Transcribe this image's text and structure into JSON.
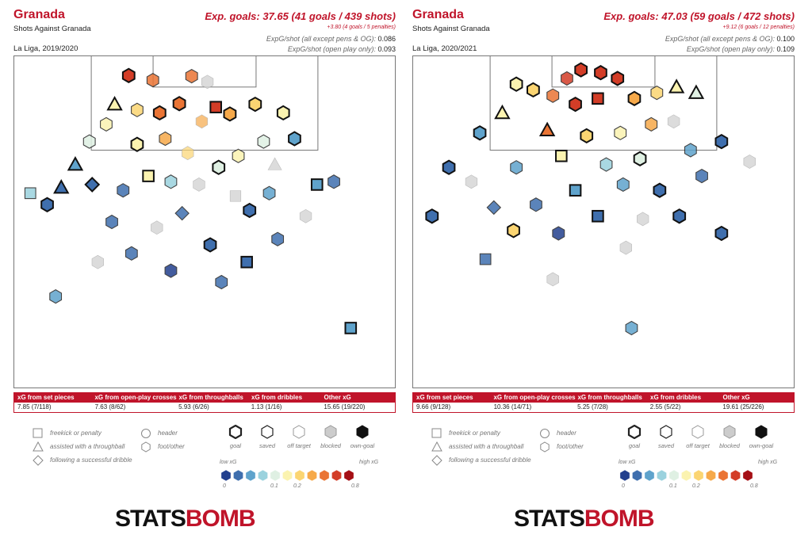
{
  "panels": [
    {
      "team": "Granada",
      "subtitle": "Shots Against Granada",
      "season": "La Liga, 2019/2020",
      "xg_title": "Exp. goals: 37.65 (41 goals / 439 shots)",
      "xg_pens": "+3.80 (4 goals / 5 penalties)",
      "stat1_label": "ExpG/shot (all except pens & OG):",
      "stat1_value": "0.086",
      "stat2_label": "ExpG/shot (open play only):",
      "stat2_value": "0.093",
      "summary_headers": [
        "xG from set pieces",
        "xG from open-play crosses",
        "xG from throughballs",
        "xG from dribbles",
        "Other xG"
      ],
      "summary_values": [
        "7.85 (7/118)",
        "7.63 (8/62)",
        "5.93 (6/26)",
        "1.13 (1/16)",
        "15.65 (19/220)"
      ]
    },
    {
      "team": "Granada",
      "subtitle": "Shots Against Granada",
      "season": "La Liga, 2020/2021",
      "xg_title": "Exp. goals: 47.03 (59 goals / 472 shots)",
      "xg_pens": "+9.12 (6 goals / 12 penalties)",
      "stat1_label": "ExpG/shot (all except pens & OG):",
      "stat1_value": "0.100",
      "stat2_label": "ExpG/shot (open play only):",
      "stat2_value": "0.109",
      "summary_headers": [
        "xG from set pieces",
        "xG from open-play crosses",
        "xG from throughballs",
        "xG from dribbles",
        "Other xG"
      ],
      "summary_values": [
        "9.66 (9/128)",
        "10.36 (14/71)",
        "5.25 (7/28)",
        "2.55 (5/22)",
        "19.61 (25/226)"
      ]
    }
  ],
  "legend": {
    "shapes": [
      "freekick or penalty",
      "assisted with a throughball",
      "following a successful dribble"
    ],
    "shapes_right": [
      "header",
      "foot/other"
    ],
    "outcomes": [
      "goal",
      "saved",
      "off target",
      "blocked",
      "own-goal"
    ],
    "scale_low": "low xG",
    "scale_high": "high xG",
    "scale_ticks": [
      "0",
      "0.1",
      "0.2",
      "0.8"
    ],
    "scale_colors": [
      "#23408e",
      "#3f6fae",
      "#5fa3cc",
      "#9bd2de",
      "#dff0e3",
      "#fbf3b0",
      "#fbd572",
      "#f6a94a",
      "#ea7434",
      "#d33d27",
      "#a50f15"
    ]
  },
  "logo": {
    "part1": "STATS",
    "part2": "BOMB"
  },
  "chart_data": [
    {
      "type": "scatter",
      "title": "Shots Against Granada",
      "description_units": "x = metres across pitch width from left touchline (0-68), y = metres from goal line (0-~58), xg = expected goals",
      "xlim": [
        0,
        68
      ],
      "ylim": [
        0,
        58
      ],
      "points": [
        {
          "x": 20.5,
          "y": 3.5,
          "xg": 0.55,
          "shape": "hex",
          "outcome": "goal"
        },
        {
          "x": 24.8,
          "y": 4.3,
          "xg": 0.35,
          "shape": "hex",
          "outcome": "saved"
        },
        {
          "x": 31.7,
          "y": 3.6,
          "xg": 0.32,
          "shape": "hex",
          "outcome": "saved"
        },
        {
          "x": 34.5,
          "y": 4.6,
          "xg": 0.28,
          "shape": "hex",
          "outcome": "blocked"
        },
        {
          "x": 36.0,
          "y": 9.0,
          "xg": 0.62,
          "shape": "square",
          "outcome": "goal"
        },
        {
          "x": 29.5,
          "y": 8.4,
          "xg": 0.45,
          "shape": "hex",
          "outcome": "goal"
        },
        {
          "x": 26.0,
          "y": 10.0,
          "xg": 0.3,
          "shape": "hex",
          "outcome": "goal"
        },
        {
          "x": 22.0,
          "y": 9.5,
          "xg": 0.18,
          "shape": "hex",
          "outcome": "saved"
        },
        {
          "x": 33.5,
          "y": 11.5,
          "xg": 0.2,
          "shape": "hex",
          "outcome": "off target"
        },
        {
          "x": 38.5,
          "y": 10.2,
          "xg": 0.22,
          "shape": "hex",
          "outcome": "goal"
        },
        {
          "x": 43.0,
          "y": 8.5,
          "xg": 0.18,
          "shape": "hex",
          "outcome": "goal"
        },
        {
          "x": 18.0,
          "y": 8.5,
          "xg": 0.12,
          "shape": "triangle",
          "outcome": "goal"
        },
        {
          "x": 16.5,
          "y": 12.0,
          "xg": 0.13,
          "shape": "hex",
          "outcome": "saved"
        },
        {
          "x": 48.0,
          "y": 10.0,
          "xg": 0.1,
          "shape": "hex",
          "outcome": "goal"
        },
        {
          "x": 50.0,
          "y": 14.5,
          "xg": 0.05,
          "shape": "hex",
          "outcome": "goal"
        },
        {
          "x": 13.5,
          "y": 15.0,
          "xg": 0.09,
          "shape": "hex",
          "outcome": "saved"
        },
        {
          "x": 11.0,
          "y": 19.0,
          "xg": 0.04,
          "shape": "triangle",
          "outcome": "goal"
        },
        {
          "x": 22.0,
          "y": 15.5,
          "xg": 0.11,
          "shape": "hex",
          "outcome": "goal"
        },
        {
          "x": 27.0,
          "y": 14.5,
          "xg": 0.25,
          "shape": "hex",
          "outcome": "saved"
        },
        {
          "x": 31.0,
          "y": 17.0,
          "xg": 0.15,
          "shape": "hex",
          "outcome": "off target"
        },
        {
          "x": 40.0,
          "y": 17.5,
          "xg": 0.12,
          "shape": "hex",
          "outcome": "saved"
        },
        {
          "x": 44.5,
          "y": 15.0,
          "xg": 0.09,
          "shape": "hex",
          "outcome": "saved"
        },
        {
          "x": 46.5,
          "y": 19.0,
          "xg": 0.2,
          "shape": "triangle",
          "outcome": "blocked"
        },
        {
          "x": 36.5,
          "y": 19.5,
          "xg": 0.09,
          "shape": "hex",
          "outcome": "goal"
        },
        {
          "x": 24.0,
          "y": 21.0,
          "xg": 0.1,
          "shape": "square",
          "outcome": "goal"
        },
        {
          "x": 28.0,
          "y": 22.0,
          "xg": 0.06,
          "shape": "hex",
          "outcome": "saved"
        },
        {
          "x": 33.0,
          "y": 22.5,
          "xg": 0.05,
          "shape": "hex",
          "outcome": "blocked"
        },
        {
          "x": 19.5,
          "y": 23.5,
          "xg": 0.03,
          "shape": "hex",
          "outcome": "saved"
        },
        {
          "x": 14.0,
          "y": 22.5,
          "xg": 0.02,
          "shape": "diamond",
          "outcome": "goal"
        },
        {
          "x": 8.5,
          "y": 23.0,
          "xg": 0.03,
          "shape": "triangle",
          "outcome": "goal"
        },
        {
          "x": 39.5,
          "y": 24.5,
          "xg": 0.04,
          "shape": "square",
          "outcome": "blocked"
        },
        {
          "x": 45.5,
          "y": 24.0,
          "xg": 0.05,
          "shape": "hex",
          "outcome": "saved"
        },
        {
          "x": 54.0,
          "y": 22.5,
          "xg": 0.04,
          "shape": "square",
          "outcome": "goal"
        },
        {
          "x": 57.0,
          "y": 22.0,
          "xg": 0.03,
          "shape": "hex",
          "outcome": "saved"
        },
        {
          "x": 42.0,
          "y": 27.0,
          "xg": 0.03,
          "shape": "hex",
          "outcome": "goal"
        },
        {
          "x": 30.0,
          "y": 27.5,
          "xg": 0.02,
          "shape": "diamond",
          "outcome": "saved"
        },
        {
          "x": 25.5,
          "y": 30.0,
          "xg": 0.02,
          "shape": "hex",
          "outcome": "blocked"
        },
        {
          "x": 17.5,
          "y": 29.0,
          "xg": 0.02,
          "shape": "hex",
          "outcome": "saved"
        },
        {
          "x": 6.0,
          "y": 26.0,
          "xg": 0.03,
          "shape": "hex",
          "outcome": "goal"
        },
        {
          "x": 3.0,
          "y": 24.0,
          "xg": 0.06,
          "shape": "square",
          "outcome": "saved"
        },
        {
          "x": 47.0,
          "y": 32.0,
          "xg": 0.02,
          "shape": "hex",
          "outcome": "saved"
        },
        {
          "x": 52.0,
          "y": 28.0,
          "xg": 0.02,
          "shape": "hex",
          "outcome": "blocked"
        },
        {
          "x": 35.0,
          "y": 33.0,
          "xg": 0.02,
          "shape": "hex",
          "outcome": "goal"
        },
        {
          "x": 21.0,
          "y": 34.5,
          "xg": 0.02,
          "shape": "hex",
          "outcome": "saved"
        },
        {
          "x": 41.5,
          "y": 36.0,
          "xg": 0.02,
          "shape": "square",
          "outcome": "goal"
        },
        {
          "x": 28.0,
          "y": 37.5,
          "xg": 0.01,
          "shape": "hex",
          "outcome": "saved"
        },
        {
          "x": 15.0,
          "y": 36.0,
          "xg": 0.02,
          "shape": "hex",
          "outcome": "blocked"
        },
        {
          "x": 7.5,
          "y": 42.0,
          "xg": 0.05,
          "shape": "hex",
          "outcome": "saved"
        },
        {
          "x": 60.0,
          "y": 47.5,
          "xg": 0.05,
          "shape": "square",
          "outcome": "goal"
        },
        {
          "x": 37.0,
          "y": 39.5,
          "xg": 0.02,
          "shape": "hex",
          "outcome": "saved"
        }
      ]
    },
    {
      "type": "scatter",
      "title": "Shots Against Granada",
      "description_units": "x = metres across pitch width from left touchline (0-68), y = metres from goal line (0-~58), xg = expected goals",
      "xlim": [
        0,
        68
      ],
      "ylim": [
        0,
        58
      ],
      "points": [
        {
          "x": 30.0,
          "y": 2.5,
          "xg": 0.65,
          "shape": "hex",
          "outcome": "goal"
        },
        {
          "x": 33.5,
          "y": 3.0,
          "xg": 0.7,
          "shape": "hex",
          "outcome": "goal"
        },
        {
          "x": 27.5,
          "y": 4.0,
          "xg": 0.6,
          "shape": "hex",
          "outcome": "saved"
        },
        {
          "x": 36.5,
          "y": 4.0,
          "xg": 0.5,
          "shape": "hex",
          "outcome": "goal"
        },
        {
          "x": 33.0,
          "y": 7.5,
          "xg": 0.72,
          "shape": "square",
          "outcome": "goal"
        },
        {
          "x": 29.0,
          "y": 8.5,
          "xg": 0.55,
          "shape": "hex",
          "outcome": "goal"
        },
        {
          "x": 25.0,
          "y": 7.0,
          "xg": 0.3,
          "shape": "hex",
          "outcome": "saved"
        },
        {
          "x": 21.5,
          "y": 6.0,
          "xg": 0.18,
          "shape": "hex",
          "outcome": "goal"
        },
        {
          "x": 18.5,
          "y": 5.0,
          "xg": 0.14,
          "shape": "hex",
          "outcome": "goal"
        },
        {
          "x": 39.5,
          "y": 7.5,
          "xg": 0.28,
          "shape": "hex",
          "outcome": "goal"
        },
        {
          "x": 43.5,
          "y": 6.5,
          "xg": 0.16,
          "shape": "hex",
          "outcome": "saved"
        },
        {
          "x": 47.0,
          "y": 5.5,
          "xg": 0.12,
          "shape": "triangle",
          "outcome": "goal"
        },
        {
          "x": 50.5,
          "y": 6.5,
          "xg": 0.08,
          "shape": "triangle",
          "outcome": "goal"
        },
        {
          "x": 16.0,
          "y": 10.0,
          "xg": 0.1,
          "shape": "triangle",
          "outcome": "goal"
        },
        {
          "x": 24.0,
          "y": 13.0,
          "xg": 0.35,
          "shape": "triangle",
          "outcome": "goal"
        },
        {
          "x": 31.0,
          "y": 14.0,
          "xg": 0.18,
          "shape": "hex",
          "outcome": "goal"
        },
        {
          "x": 37.0,
          "y": 13.5,
          "xg": 0.12,
          "shape": "hex",
          "outcome": "saved"
        },
        {
          "x": 42.5,
          "y": 12.0,
          "xg": 0.2,
          "shape": "hex",
          "outcome": "saved"
        },
        {
          "x": 46.5,
          "y": 11.5,
          "xg": 0.09,
          "shape": "hex",
          "outcome": "blocked"
        },
        {
          "x": 12.0,
          "y": 13.5,
          "xg": 0.05,
          "shape": "hex",
          "outcome": "goal"
        },
        {
          "x": 26.5,
          "y": 17.5,
          "xg": 0.1,
          "shape": "square",
          "outcome": "goal"
        },
        {
          "x": 34.5,
          "y": 19.0,
          "xg": 0.07,
          "shape": "hex",
          "outcome": "saved"
        },
        {
          "x": 40.5,
          "y": 18.0,
          "xg": 0.09,
          "shape": "hex",
          "outcome": "goal"
        },
        {
          "x": 49.5,
          "y": 16.5,
          "xg": 0.04,
          "shape": "hex",
          "outcome": "saved"
        },
        {
          "x": 55.0,
          "y": 15.0,
          "xg": 0.03,
          "shape": "hex",
          "outcome": "goal"
        },
        {
          "x": 18.5,
          "y": 19.5,
          "xg": 0.04,
          "shape": "hex",
          "outcome": "saved"
        },
        {
          "x": 10.5,
          "y": 22.0,
          "xg": 0.03,
          "shape": "hex",
          "outcome": "blocked"
        },
        {
          "x": 6.5,
          "y": 19.5,
          "xg": 0.02,
          "shape": "hex",
          "outcome": "goal"
        },
        {
          "x": 29.0,
          "y": 23.5,
          "xg": 0.04,
          "shape": "square",
          "outcome": "goal"
        },
        {
          "x": 37.5,
          "y": 22.5,
          "xg": 0.05,
          "shape": "hex",
          "outcome": "saved"
        },
        {
          "x": 44.0,
          "y": 23.5,
          "xg": 0.03,
          "shape": "hex",
          "outcome": "goal"
        },
        {
          "x": 51.5,
          "y": 21.0,
          "xg": 0.02,
          "shape": "hex",
          "outcome": "saved"
        },
        {
          "x": 60.0,
          "y": 18.5,
          "xg": 0.02,
          "shape": "hex",
          "outcome": "blocked"
        },
        {
          "x": 22.0,
          "y": 26.0,
          "xg": 0.02,
          "shape": "hex",
          "outcome": "saved"
        },
        {
          "x": 14.5,
          "y": 26.5,
          "xg": 0.02,
          "shape": "diamond",
          "outcome": "saved"
        },
        {
          "x": 33.0,
          "y": 28.0,
          "xg": 0.02,
          "shape": "square",
          "outcome": "goal"
        },
        {
          "x": 41.0,
          "y": 28.5,
          "xg": 0.02,
          "shape": "hex",
          "outcome": "blocked"
        },
        {
          "x": 47.5,
          "y": 28.0,
          "xg": 0.02,
          "shape": "hex",
          "outcome": "goal"
        },
        {
          "x": 26.0,
          "y": 31.0,
          "xg": 0.01,
          "shape": "hex",
          "outcome": "saved"
        },
        {
          "x": 18.0,
          "y": 30.5,
          "xg": 0.18,
          "shape": "hex",
          "outcome": "goal"
        },
        {
          "x": 38.0,
          "y": 33.5,
          "xg": 0.01,
          "shape": "hex",
          "outcome": "blocked"
        },
        {
          "x": 25.0,
          "y": 39.0,
          "xg": 0.03,
          "shape": "hex",
          "outcome": "blocked"
        },
        {
          "x": 13.0,
          "y": 35.5,
          "xg": 0.02,
          "shape": "square",
          "outcome": "saved"
        },
        {
          "x": 39.0,
          "y": 47.5,
          "xg": 0.05,
          "shape": "hex",
          "outcome": "saved"
        },
        {
          "x": 55.0,
          "y": 31.0,
          "xg": 0.02,
          "shape": "hex",
          "outcome": "goal"
        },
        {
          "x": 3.5,
          "y": 28.0,
          "xg": 0.02,
          "shape": "hex",
          "outcome": "goal"
        }
      ]
    }
  ]
}
